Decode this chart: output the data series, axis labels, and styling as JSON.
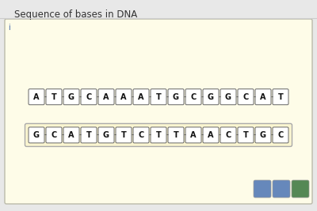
{
  "title": "Sequence of bases in DNA",
  "outer_bg": "#e8e8e8",
  "panel_bg": "#fefce8",
  "panel_border": "#bbbbaa",
  "row1": [
    "A",
    "T",
    "G",
    "C",
    "A",
    "A",
    "A",
    "T",
    "G",
    "C",
    "G",
    "G",
    "C",
    "A",
    "T"
  ],
  "row2": [
    "G",
    "C",
    "A",
    "T",
    "G",
    "T",
    "C",
    "T",
    "T",
    "A",
    "A",
    "C",
    "T",
    "G",
    "C"
  ],
  "letter_box_color": "#ffffff",
  "letter_box_border": "#666666",
  "dash_color": "#444444",
  "text_color": "#111111",
  "title_color": "#333333",
  "title_fontsize": 8.5,
  "letter_fontsize": 7,
  "icon_colors": [
    "#6688bb",
    "#6688bb",
    "#558855"
  ]
}
